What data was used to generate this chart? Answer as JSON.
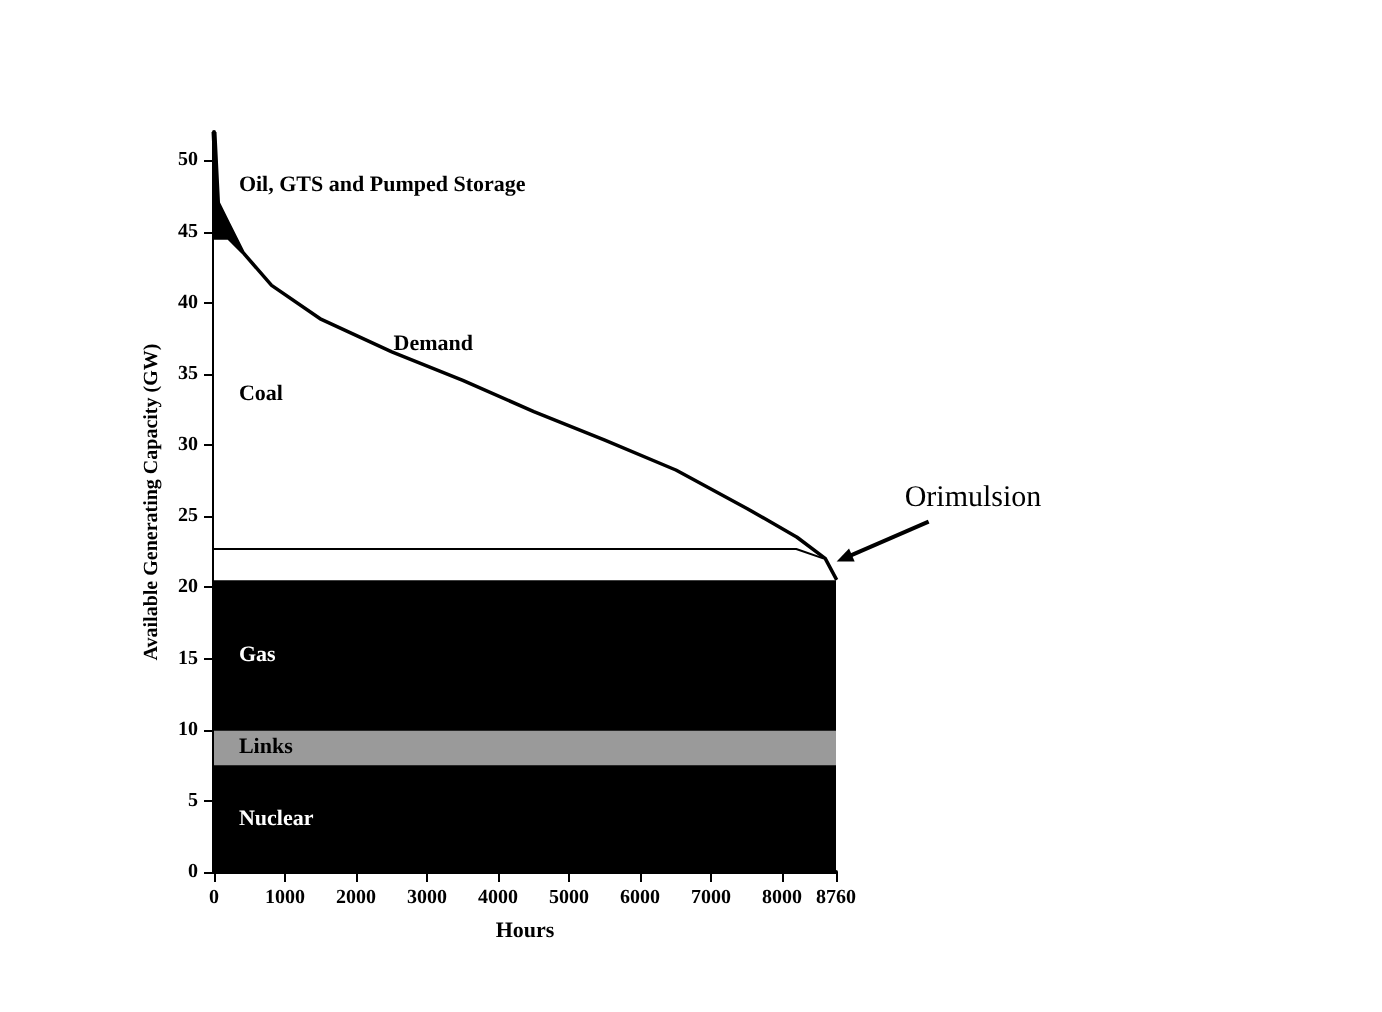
{
  "chart_data": {
    "type": "area",
    "stacked": true,
    "xlabel": "Hours",
    "ylabel": "Available Generating Capacity (GW)",
    "x": [
      0,
      50,
      200,
      400,
      800,
      1500,
      2500,
      3500,
      4500,
      5500,
      6500,
      7500,
      8200,
      8600,
      8760
    ],
    "series": [
      {
        "name": "Nuclear",
        "color": "#000000",
        "values": [
          7.5,
          7.5,
          7.5,
          7.5,
          7.5,
          7.5,
          7.5,
          7.5,
          7.5,
          7.5,
          7.5,
          7.5,
          7.5,
          7.5,
          7.5
        ]
      },
      {
        "name": "Links",
        "color": "#9a9a9a",
        "values": [
          2.5,
          2.5,
          2.5,
          2.5,
          2.5,
          2.5,
          2.5,
          2.5,
          2.5,
          2.5,
          2.5,
          2.5,
          2.5,
          2.5,
          2.5
        ]
      },
      {
        "name": "Gas",
        "color": "#000000",
        "values": [
          10.5,
          10.5,
          10.5,
          10.5,
          10.5,
          10.5,
          10.5,
          10.5,
          10.5,
          10.5,
          10.5,
          10.5,
          10.5,
          10.5,
          10.5
        ]
      },
      {
        "name": "Orimulsion",
        "color": "#ffffff",
        "values": [
          2.2,
          2.2,
          2.2,
          2.2,
          2.2,
          2.2,
          2.2,
          2.2,
          2.2,
          2.2,
          2.2,
          2.2,
          2.2,
          1.5,
          0
        ]
      },
      {
        "name": "Coal",
        "color": "#ffffff",
        "values": [
          21.8,
          21.8,
          21.8,
          20.8,
          18.5,
          16.1,
          13.8,
          11.8,
          9.6,
          7.6,
          5.5,
          2.8,
          0.8,
          0,
          0
        ]
      },
      {
        "name": "Oil, GTS and Pumped Storage",
        "color": "#000000",
        "values": [
          7.5,
          2.5,
          1,
          0,
          0,
          0,
          0,
          0,
          0,
          0,
          0,
          0,
          0,
          0,
          0
        ]
      }
    ],
    "annotations": [
      "Demand"
    ],
    "xlim": [
      0,
      8760
    ],
    "xticks": [
      0,
      1000,
      2000,
      3000,
      4000,
      5000,
      6000,
      7000,
      8000,
      8760
    ],
    "ylim": [
      0,
      52
    ],
    "yticks": [
      0,
      5,
      10,
      15,
      20,
      25,
      30,
      35,
      40,
      45,
      50
    ],
    "grid": false,
    "legend": false
  }
}
